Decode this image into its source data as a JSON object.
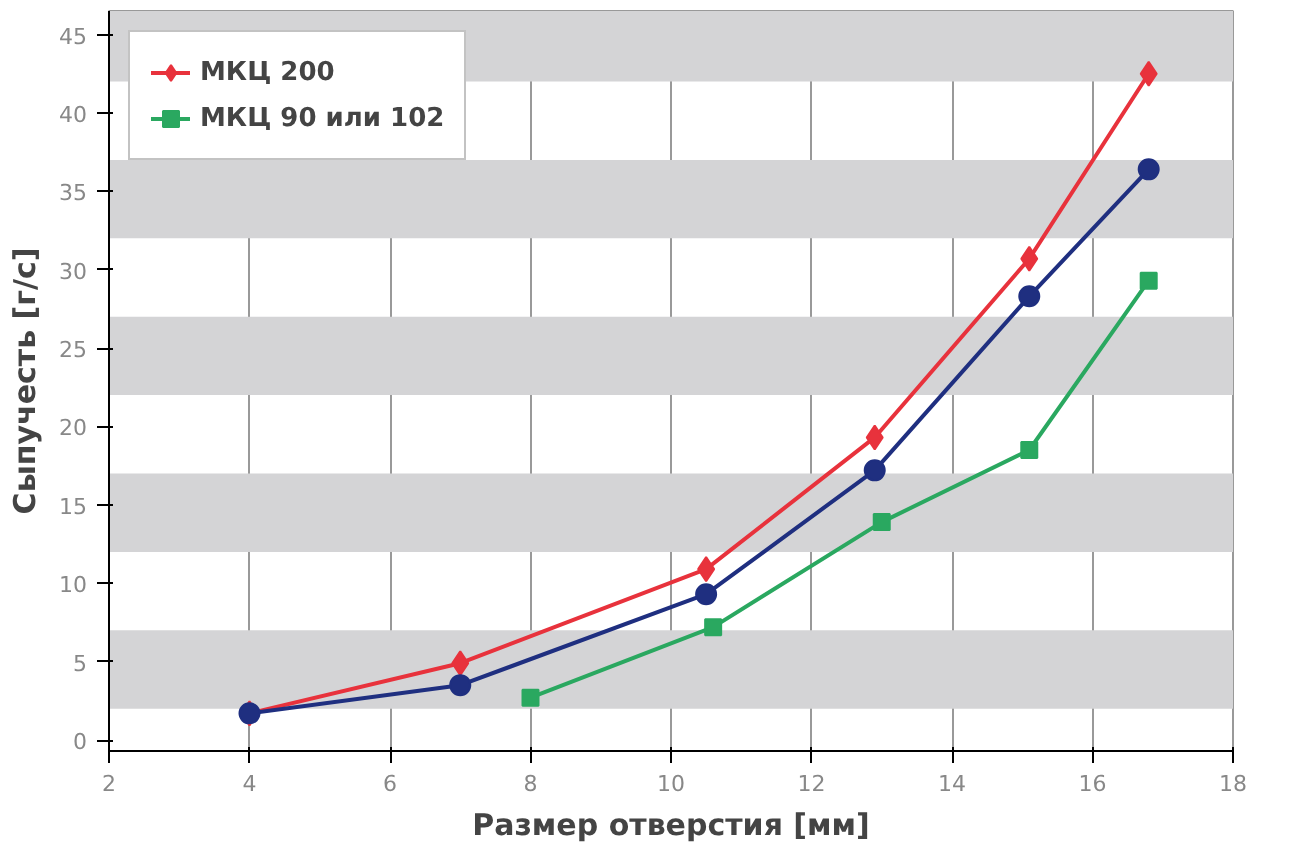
{
  "chart_data": {
    "type": "line",
    "xlabel": "Размер отверстия [мм]",
    "ylabel": "Сыпучесть [г/с]",
    "xlim": [
      2,
      18
    ],
    "ylim": [
      -0.7,
      46.5
    ],
    "xticks": [
      2,
      4,
      6,
      8,
      10,
      12,
      14,
      16,
      18
    ],
    "yticks": [
      0,
      5,
      10,
      15,
      20,
      25,
      30,
      35,
      40,
      45
    ],
    "grid": "x",
    "legend": "top left",
    "line_style": "solid",
    "bands": [
      {
        "axis": "y",
        "from": 2,
        "to": 7,
        "color": "#d4d4d6"
      },
      {
        "axis": "y",
        "from": 12,
        "to": 17,
        "color": "#d4d4d6"
      },
      {
        "axis": "y",
        "from": 22,
        "to": 27,
        "color": "#d4d4d6"
      },
      {
        "axis": "y",
        "from": 32,
        "to": 37,
        "color": "#d4d4d6"
      },
      {
        "axis": "y",
        "from": 42,
        "to": 46.5,
        "color": "#d4d4d6"
      }
    ],
    "series": [
      {
        "color": "#1f2f80",
        "marker": "circle",
        "x": [
          4,
          7,
          10.5,
          12.9,
          15.1,
          16.8
        ],
        "values": [
          1.7,
          3.5,
          9.3,
          17.2,
          28.3,
          36.4
        ]
      },
      {
        "name": "МКЦ 200",
        "color": "#e8323c",
        "marker": "diamond",
        "x": [
          4,
          7,
          10.5,
          12.9,
          15.1,
          16.8
        ],
        "values": [
          1.7,
          4.9,
          10.9,
          19.3,
          30.7,
          42.5
        ]
      },
      {
        "name": "МКЦ 90 или 102",
        "color": "#2aa860",
        "marker": "square",
        "x": [
          8,
          10.6,
          13.0,
          15.1,
          16.8
        ],
        "values": [
          2.7,
          7.2,
          13.9,
          18.5,
          29.3
        ]
      }
    ]
  }
}
